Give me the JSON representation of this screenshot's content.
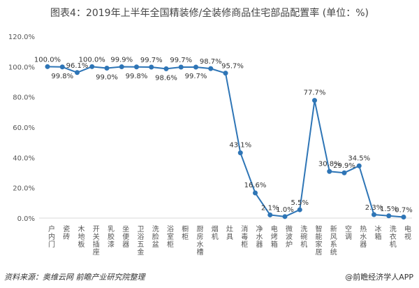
{
  "title": "图表4：2019年上半年全国精装修/全装修商品住宅部品配置率 (单位：%)",
  "source": "资料来源：奥维云网 前瞻产业研究院整理",
  "brand": "@前瞻经济学人APP",
  "chart_data": {
    "type": "line",
    "title": "图表4：2019年上半年全国精装修/全装修商品住宅部品配置率 (单位：%)",
    "xlabel": "",
    "ylabel": "",
    "ylim": [
      0,
      120
    ],
    "yticks": [
      "0.0%",
      "20.0%",
      "40.0%",
      "60.0%",
      "80.0%",
      "100.0%",
      "120.0%"
    ],
    "grid": false,
    "color": "#2e75b6",
    "categories": [
      "户内门",
      "瓷砖",
      "木地板",
      "开关插座",
      "乳胶漆",
      "坐便器",
      "卫浴五金",
      "洗脸盆",
      "浴室柜",
      "橱柜",
      "厨房水槽",
      "烟机",
      "灶具",
      "消毒柜",
      "净水器",
      "电烤箱",
      "微波炉",
      "洗碗机",
      "智能家居",
      "新风系统",
      "空调",
      "热水器",
      "冰箱",
      "洗衣机",
      "电视"
    ],
    "values": [
      100.0,
      99.8,
      96.1,
      100.0,
      99.0,
      99.9,
      99.8,
      99.7,
      98.6,
      99.7,
      99.7,
      98.7,
      95.7,
      43.1,
      16.6,
      2.1,
      1.0,
      5.5,
      77.7,
      30.8,
      29.9,
      34.5,
      2.3,
      1.5,
      0.7
    ],
    "labels": [
      "100.0%",
      "99.8%",
      "96.1%",
      "100.0%",
      "99.0%",
      "99.9%",
      "99.8%",
      "99.7%",
      "98.6%",
      "99.7%",
      "99.7%",
      "98.7%",
      "95.7%",
      "43.1%",
      "16.6%",
      "2.1%",
      "1.0%",
      "5.5%",
      "77.7%",
      "30.8%",
      "29.9%",
      "34.5%",
      "2.3%",
      "1.5%",
      "0.7%"
    ]
  }
}
